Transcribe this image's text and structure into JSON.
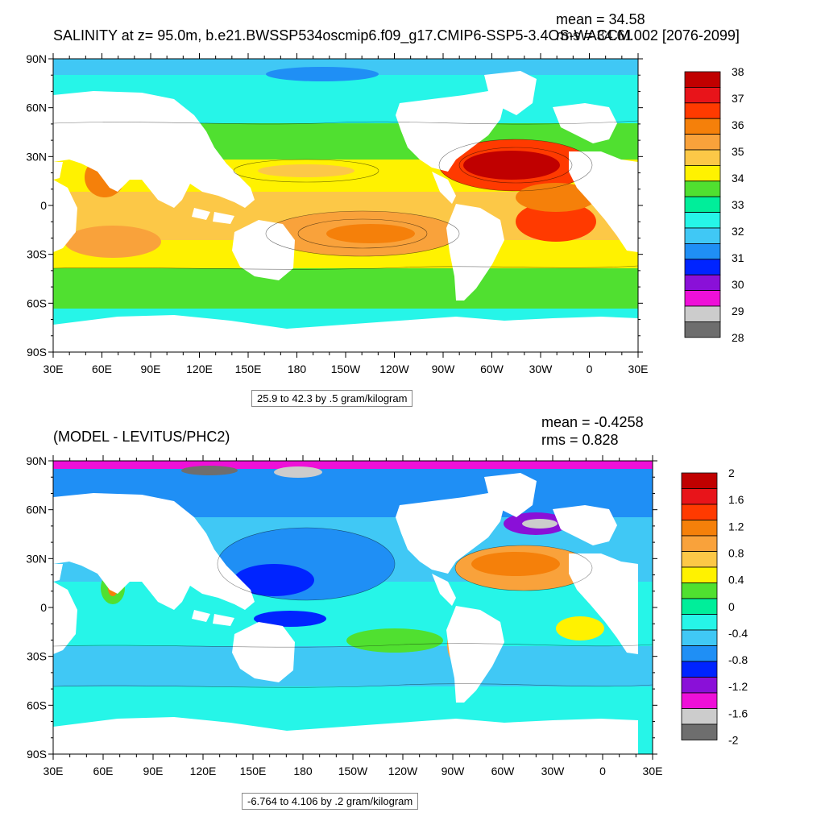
{
  "panel1": {
    "title": "SALINITY at z=  95.0m, b.e21.BWSSP534oscmip6.f09_g17.CMIP6-SSP5-3.4OS-WACCM.002 [2076-2099]",
    "mean": "mean = 34.58",
    "rms": "rms = 34.61",
    "contour_note": "25.9 to 42.3 by .5 gram/kilogram",
    "lat_labels": [
      "90N",
      "60N",
      "30N",
      "0",
      "30S",
      "60S",
      "90S"
    ],
    "lon_labels": [
      "30E",
      "60E",
      "90E",
      "120E",
      "150E",
      "180",
      "150W",
      "120W",
      "90W",
      "60W",
      "30W",
      "0",
      "30E"
    ],
    "colorbar_labels": [
      "38",
      "37",
      "36",
      "35",
      "34",
      "33",
      "32",
      "31",
      "30",
      "29",
      "28"
    ],
    "colorbar_colors": [
      "#c00000",
      "#e8141a",
      "#ff3a00",
      "#f5800a",
      "#f9a23b",
      "#fcc847",
      "#fff200",
      "#50e030",
      "#00ee9a",
      "#26f5e8",
      "#40c8f5",
      "#1f8ff5",
      "#0024ff",
      "#8a10d8",
      "#ee10d8",
      "#cccccc",
      "#6e6e6e"
    ]
  },
  "panel2": {
    "title": "(MODEL - LEVITUS/PHC2)",
    "mean": "mean = -0.4258",
    "rms": "rms = 0.828",
    "contour_note": "-6.764 to 4.106 by .2 gram/kilogram",
    "lat_labels": [
      "90N",
      "60N",
      "30N",
      "0",
      "30S",
      "60S",
      "90S"
    ],
    "lon_labels": [
      "30E",
      "60E",
      "90E",
      "120E",
      "150E",
      "180",
      "150W",
      "120W",
      "90W",
      "60W",
      "30W",
      "0",
      "30E"
    ],
    "colorbar_labels": [
      "2",
      "1.6",
      "1.2",
      "0.8",
      "0.4",
      "0",
      "-0.4",
      "-0.8",
      "-1.2",
      "-1.6",
      "-2"
    ],
    "colorbar_colors": [
      "#c00000",
      "#e8141a",
      "#ff3a00",
      "#f5800a",
      "#f9a23b",
      "#fcc847",
      "#fff200",
      "#50e030",
      "#00ee9a",
      "#26f5e8",
      "#40c8f5",
      "#1f8ff5",
      "#0024ff",
      "#8a10d8",
      "#ee10d8",
      "#cccccc",
      "#6e6e6e"
    ]
  }
}
